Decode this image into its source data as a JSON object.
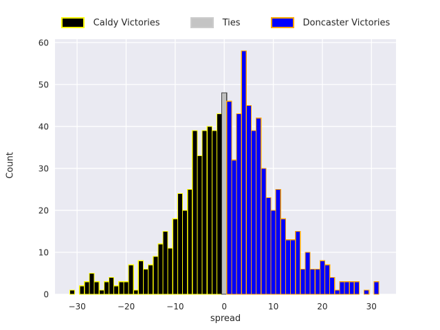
{
  "figure": {
    "background": "#ffffff",
    "plot_background": "#eaeaf2",
    "grid_color": "#ffffff",
    "tick_label_color": "#262626"
  },
  "legend": {
    "items": [
      {
        "label": "Caldy Victories",
        "fill": "#000000",
        "edge": "#ffff00"
      },
      {
        "label": "Ties",
        "fill": "#c4c4c4",
        "edge": "#cccccc"
      },
      {
        "label": "Doncaster Victories",
        "fill": "#0000ff",
        "edge": "#ffa500"
      }
    ]
  },
  "chart_data": {
    "type": "bar",
    "subtype": "histogram",
    "title": "",
    "xlabel": "spread",
    "ylabel": "Count",
    "grid": true,
    "legend_position": "top-center-horizontal",
    "bin_width": 1,
    "xlim": [
      -34.5,
      35
    ],
    "ylim": [
      0,
      60.8
    ],
    "x_ticks": [
      -30,
      -20,
      -10,
      0,
      10,
      20,
      30
    ],
    "x_tick_labels": [
      "−30",
      "−20",
      "−10",
      "0",
      "10",
      "20",
      "30"
    ],
    "y_ticks": [
      0,
      10,
      20,
      30,
      40,
      50,
      60
    ],
    "y_tick_labels": [
      "0",
      "10",
      "20",
      "30",
      "40",
      "50",
      "60"
    ],
    "series": [
      {
        "name": "Caldy Victories",
        "fill": "#000000",
        "edge": "#ffff00",
        "x": [
          -31,
          -30,
          -29,
          -28,
          -27,
          -26,
          -25,
          -24,
          -23,
          -22,
          -21,
          -20,
          -19,
          -18,
          -17,
          -16,
          -15,
          -14,
          -13,
          -12,
          -11,
          -10,
          -9,
          -8,
          -7,
          -6,
          -5,
          -4,
          -3,
          -2,
          -1
        ],
        "counts": [
          1,
          0,
          2,
          3,
          5,
          3,
          1,
          3,
          4,
          2,
          3,
          3,
          7,
          1,
          8,
          6,
          7,
          9,
          12,
          15,
          11,
          18,
          24,
          20,
          25,
          39,
          33,
          39,
          40,
          39,
          43
        ]
      },
      {
        "name": "Ties",
        "fill": "#c0c0c0",
        "edge": "#404040",
        "x": [
          0
        ],
        "counts": [
          48
        ]
      },
      {
        "name": "Doncaster Victories",
        "fill": "#0000ff",
        "edge": "#ffa500",
        "x": [
          1,
          2,
          3,
          4,
          5,
          6,
          7,
          8,
          9,
          10,
          11,
          12,
          13,
          14,
          15,
          16,
          17,
          18,
          19,
          20,
          21,
          22,
          23,
          24,
          25,
          26,
          27,
          28,
          29,
          30,
          31
        ],
        "counts": [
          46,
          32,
          43,
          58,
          45,
          39,
          42,
          30,
          23,
          20,
          25,
          18,
          13,
          13,
          15,
          6,
          10,
          6,
          6,
          8,
          7,
          4,
          1,
          3,
          3,
          3,
          3,
          0,
          1,
          0,
          3
        ]
      }
    ]
  }
}
